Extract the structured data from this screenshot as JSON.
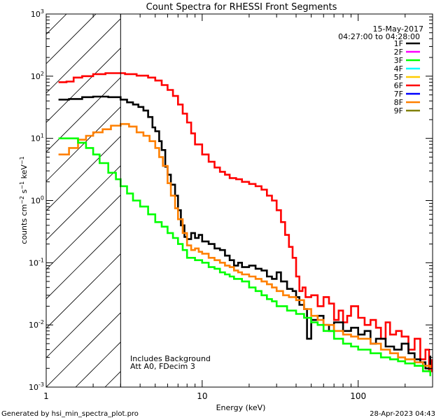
{
  "chart_data": {
    "type": "line",
    "title": "Count Spectra for RHESSI Front Segments",
    "xlabel": "Energy (keV)",
    "ylabel": "counts cm-2 s-1 keV-1",
    "xscale": "log",
    "yscale": "log",
    "xlim": [
      1,
      300
    ],
    "ylim": [
      0.001,
      1000
    ],
    "x_ticks": [
      {
        "value": 1,
        "label": "1"
      },
      {
        "value": 10,
        "label": "10"
      },
      {
        "value": 100,
        "label": "100"
      }
    ],
    "y_ticks": [
      {
        "value": 0.001,
        "base": "10",
        "exp": "-3"
      },
      {
        "value": 0.01,
        "base": "10",
        "exp": "-2"
      },
      {
        "value": 0.1,
        "base": "10",
        "exp": "-1"
      },
      {
        "value": 1,
        "base": "10",
        "exp": "0"
      },
      {
        "value": 10,
        "base": "10",
        "exp": "1"
      },
      {
        "value": 100,
        "base": "10",
        "exp": "2"
      },
      {
        "value": 1000,
        "base": "10",
        "exp": "3"
      }
    ],
    "excluded_region": {
      "x_start": 1,
      "x_end": 3,
      "style": "hatched"
    },
    "annotations": {
      "date": "15-May-2017",
      "time_range": "04:27:00 to 04:28:00",
      "note_line1": "Includes Background",
      "note_line2": "Att A0, FDecim 3"
    },
    "legend": [
      {
        "label": "1F",
        "color": "#000000"
      },
      {
        "label": "2F",
        "color": "#ff00ff"
      },
      {
        "label": "3F",
        "color": "#00ff00"
      },
      {
        "label": "4F",
        "color": "#00ffff"
      },
      {
        "label": "5F",
        "color": "#ffcc00"
      },
      {
        "label": "6F",
        "color": "#ff0000"
      },
      {
        "label": "7F",
        "color": "#0000ff"
      },
      {
        "label": "8F",
        "color": "#ff8000"
      },
      {
        "label": "9F",
        "color": "#808000"
      }
    ],
    "series": [
      {
        "name": "6F",
        "color": "#ff0000",
        "points": [
          [
            1.2,
            80
          ],
          [
            1.35,
            82
          ],
          [
            1.5,
            95
          ],
          [
            1.7,
            100
          ],
          [
            2.0,
            108
          ],
          [
            2.4,
            112
          ],
          [
            2.8,
            112
          ],
          [
            3.2,
            108
          ],
          [
            3.8,
            102
          ],
          [
            4.5,
            95
          ],
          [
            5.0,
            85
          ],
          [
            5.5,
            72
          ],
          [
            6.0,
            60
          ],
          [
            6.5,
            48
          ],
          [
            7.0,
            35
          ],
          [
            7.5,
            25
          ],
          [
            8.0,
            18
          ],
          [
            8.5,
            12
          ],
          [
            9.0,
            8
          ],
          [
            10.0,
            5.5
          ],
          [
            11.0,
            4.2
          ],
          [
            12.0,
            3.4
          ],
          [
            13.0,
            2.9
          ],
          [
            14.0,
            2.6
          ],
          [
            15.0,
            2.3
          ],
          [
            16.5,
            2.2
          ],
          [
            18.0,
            2.0
          ],
          [
            20.0,
            1.85
          ],
          [
            22.0,
            1.7
          ],
          [
            24.0,
            1.5
          ],
          [
            26.0,
            1.2
          ],
          [
            28.0,
            1.0
          ],
          [
            30.0,
            0.7
          ],
          [
            32.0,
            0.45
          ],
          [
            34.0,
            0.28
          ],
          [
            36.0,
            0.18
          ],
          [
            38.0,
            0.12
          ],
          [
            40.0,
            0.06
          ],
          [
            42.0,
            0.035
          ],
          [
            44.0,
            0.04
          ],
          [
            46.0,
            0.028
          ],
          [
            50.0,
            0.03
          ],
          [
            55.0,
            0.02
          ],
          [
            60.0,
            0.028
          ],
          [
            65.0,
            0.022
          ],
          [
            70.0,
            0.012
          ],
          [
            75.0,
            0.017
          ],
          [
            80.0,
            0.011
          ],
          [
            85.0,
            0.014
          ],
          [
            90.0,
            0.02
          ],
          [
            100.0,
            0.013
          ],
          [
            110.0,
            0.01
          ],
          [
            120.0,
            0.012
          ],
          [
            130.0,
            0.009
          ],
          [
            140.0,
            0.006
          ],
          [
            150.0,
            0.011
          ],
          [
            160.0,
            0.007
          ],
          [
            175.0,
            0.008
          ],
          [
            190.0,
            0.0065
          ],
          [
            210.0,
            0.004
          ],
          [
            230.0,
            0.006
          ],
          [
            250.0,
            0.0028
          ],
          [
            270.0,
            0.004
          ],
          [
            285.0,
            0.0018
          ],
          [
            295.0,
            0.0028
          ]
        ]
      },
      {
        "name": "1F",
        "color": "#000000",
        "points": [
          [
            1.2,
            42
          ],
          [
            1.4,
            43
          ],
          [
            1.7,
            46
          ],
          [
            2.0,
            47
          ],
          [
            2.5,
            46
          ],
          [
            3.0,
            42
          ],
          [
            3.3,
            38
          ],
          [
            3.6,
            35
          ],
          [
            3.9,
            32
          ],
          [
            4.2,
            28
          ],
          [
            4.5,
            22
          ],
          [
            4.8,
            15
          ],
          [
            5.0,
            13
          ],
          [
            5.3,
            9
          ],
          [
            5.5,
            6.5
          ],
          [
            5.8,
            3.5
          ],
          [
            6.0,
            2.6
          ],
          [
            6.3,
            1.8
          ],
          [
            6.7,
            1.2
          ],
          [
            7.0,
            0.7
          ],
          [
            7.3,
            0.4
          ],
          [
            7.7,
            0.26
          ],
          [
            8.0,
            0.24
          ],
          [
            8.5,
            0.3
          ],
          [
            9.0,
            0.25
          ],
          [
            9.5,
            0.28
          ],
          [
            10.0,
            0.22
          ],
          [
            11.0,
            0.2
          ],
          [
            12.0,
            0.17
          ],
          [
            13.0,
            0.16
          ],
          [
            14.0,
            0.13
          ],
          [
            15.0,
            0.11
          ],
          [
            16.0,
            0.09
          ],
          [
            17.0,
            0.1
          ],
          [
            18.0,
            0.085
          ],
          [
            20.0,
            0.09
          ],
          [
            22.0,
            0.08
          ],
          [
            24.0,
            0.075
          ],
          [
            26.0,
            0.06
          ],
          [
            28.0,
            0.055
          ],
          [
            30.0,
            0.07
          ],
          [
            32.0,
            0.05
          ],
          [
            35.0,
            0.038
          ],
          [
            38.0,
            0.035
          ],
          [
            40.0,
            0.028
          ],
          [
            42.0,
            0.021
          ],
          [
            45.0,
            0.018
          ],
          [
            47.0,
            0.006
          ],
          [
            50.0,
            0.012
          ],
          [
            55.0,
            0.014
          ],
          [
            60.0,
            0.01
          ],
          [
            65.0,
            0.008
          ],
          [
            70.0,
            0.011
          ],
          [
            80.0,
            0.008
          ],
          [
            90.0,
            0.009
          ],
          [
            100.0,
            0.007
          ],
          [
            110.0,
            0.008
          ],
          [
            120.0,
            0.005
          ],
          [
            130.0,
            0.006
          ],
          [
            150.0,
            0.0045
          ],
          [
            170.0,
            0.004
          ],
          [
            190.0,
            0.005
          ],
          [
            210.0,
            0.0035
          ],
          [
            230.0,
            0.0028
          ],
          [
            250.0,
            0.0025
          ],
          [
            270.0,
            0.002
          ],
          [
            290.0,
            0.0032
          ]
        ]
      },
      {
        "name": "8F",
        "color": "#ff8000",
        "points": [
          [
            1.2,
            5.5
          ],
          [
            1.4,
            7
          ],
          [
            1.6,
            9.5
          ],
          [
            1.8,
            11
          ],
          [
            2.0,
            12.5
          ],
          [
            2.3,
            14
          ],
          [
            2.6,
            16
          ],
          [
            3.0,
            17
          ],
          [
            3.4,
            15.5
          ],
          [
            3.8,
            12.5
          ],
          [
            4.2,
            11
          ],
          [
            4.6,
            9
          ],
          [
            5.0,
            7
          ],
          [
            5.3,
            5
          ],
          [
            5.6,
            3.6
          ],
          [
            6.0,
            1.9
          ],
          [
            6.3,
            1.2
          ],
          [
            6.7,
            0.75
          ],
          [
            7.0,
            0.5
          ],
          [
            7.5,
            0.3
          ],
          [
            8.0,
            0.19
          ],
          [
            8.5,
            0.16
          ],
          [
            9.0,
            0.17
          ],
          [
            9.5,
            0.15
          ],
          [
            10.0,
            0.14
          ],
          [
            11.0,
            0.12
          ],
          [
            12.0,
            0.11
          ],
          [
            13.0,
            0.1
          ],
          [
            14.0,
            0.09
          ],
          [
            15.0,
            0.085
          ],
          [
            16.0,
            0.075
          ],
          [
            17.0,
            0.07
          ],
          [
            18.0,
            0.065
          ],
          [
            20.0,
            0.06
          ],
          [
            22.0,
            0.055
          ],
          [
            24.0,
            0.05
          ],
          [
            26.0,
            0.045
          ],
          [
            28.0,
            0.04
          ],
          [
            30.0,
            0.035
          ],
          [
            33.0,
            0.03
          ],
          [
            36.0,
            0.028
          ],
          [
            40.0,
            0.025
          ],
          [
            45.0,
            0.018
          ],
          [
            50.0,
            0.014
          ],
          [
            55.0,
            0.012
          ],
          [
            60.0,
            0.01
          ],
          [
            70.0,
            0.008
          ],
          [
            80.0,
            0.007
          ],
          [
            90.0,
            0.0065
          ],
          [
            100.0,
            0.006
          ],
          [
            120.0,
            0.005
          ],
          [
            140.0,
            0.004
          ],
          [
            160.0,
            0.0035
          ],
          [
            180.0,
            0.003
          ],
          [
            200.0,
            0.0028
          ],
          [
            230.0,
            0.0025
          ],
          [
            260.0,
            0.0022
          ],
          [
            290.0,
            0.002
          ]
        ]
      },
      {
        "name": "3F",
        "color": "#00ff00",
        "points": [
          [
            1.2,
            10
          ],
          [
            1.4,
            10
          ],
          [
            1.6,
            8.5
          ],
          [
            1.8,
            7
          ],
          [
            2.0,
            5.5
          ],
          [
            2.2,
            4
          ],
          [
            2.5,
            2.8
          ],
          [
            2.8,
            2.2
          ],
          [
            3.0,
            1.7
          ],
          [
            3.3,
            1.3
          ],
          [
            3.6,
            1.0
          ],
          [
            4.0,
            0.8
          ],
          [
            4.5,
            0.6
          ],
          [
            5.0,
            0.45
          ],
          [
            5.5,
            0.38
          ],
          [
            6.0,
            0.3
          ],
          [
            6.5,
            0.25
          ],
          [
            7.0,
            0.2
          ],
          [
            7.5,
            0.16
          ],
          [
            8.0,
            0.12
          ],
          [
            9.0,
            0.11
          ],
          [
            10.0,
            0.1
          ],
          [
            11.0,
            0.085
          ],
          [
            12.0,
            0.08
          ],
          [
            13.0,
            0.07
          ],
          [
            14.0,
            0.065
          ],
          [
            15.0,
            0.06
          ],
          [
            16.0,
            0.055
          ],
          [
            18.0,
            0.05
          ],
          [
            20.0,
            0.04
          ],
          [
            22.0,
            0.035
          ],
          [
            24.0,
            0.03
          ],
          [
            26.0,
            0.026
          ],
          [
            28.0,
            0.024
          ],
          [
            30.0,
            0.02
          ],
          [
            35.0,
            0.017
          ],
          [
            40.0,
            0.015
          ],
          [
            45.0,
            0.013
          ],
          [
            50.0,
            0.011
          ],
          [
            55.0,
            0.01
          ],
          [
            60.0,
            0.008
          ],
          [
            70.0,
            0.006
          ],
          [
            80.0,
            0.005
          ],
          [
            90.0,
            0.0045
          ],
          [
            100.0,
            0.004
          ],
          [
            120.0,
            0.0035
          ],
          [
            140.0,
            0.003
          ],
          [
            160.0,
            0.0028
          ],
          [
            180.0,
            0.0026
          ],
          [
            200.0,
            0.0024
          ],
          [
            230.0,
            0.0022
          ],
          [
            260.0,
            0.0018
          ],
          [
            290.0,
            0.0015
          ]
        ]
      }
    ]
  },
  "footer": {
    "generated_by": "Generated by hsi_min_spectra_plot.pro",
    "timestamp": "28-Apr-2023 04:43"
  }
}
